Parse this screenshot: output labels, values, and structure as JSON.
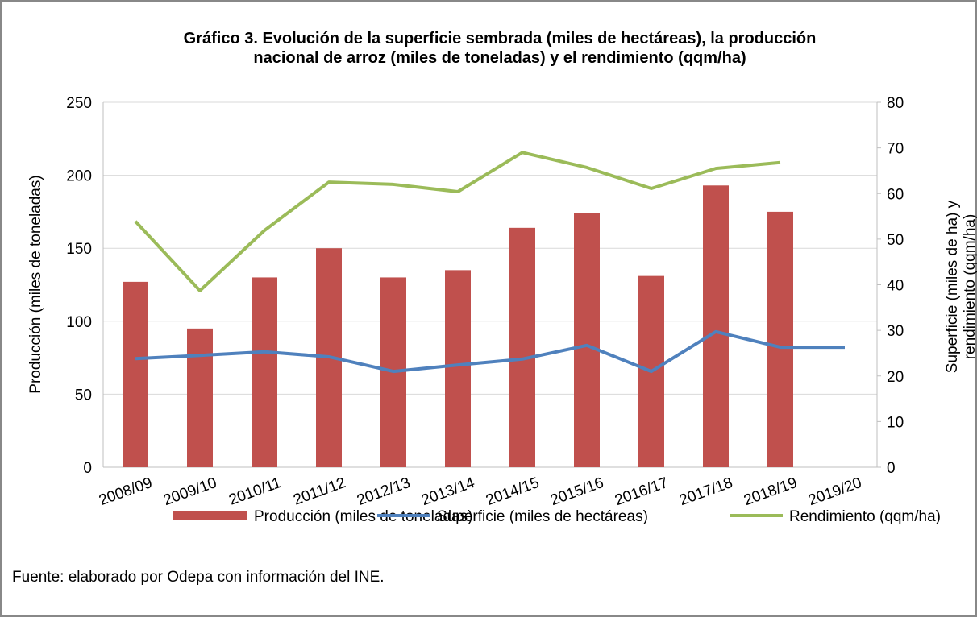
{
  "chart_data": {
    "type": "bar_line_combo",
    "title": "Gráfico 3. Evolución de la superficie sembrada (miles de hectáreas), la producción nacional de arroz (miles de toneladas) y el rendimiento (qqm/ha)",
    "y_label": "Producción (miles de toneladas)",
    "y2_label": "Superficie (miles de ha) y rendimiento (qqm/ha)",
    "source": "Fuente: elaborado por Odepa con información del INE.",
    "categories": [
      "2008/09",
      "2009/10",
      "2010/11",
      "2011/12",
      "2012/13",
      "2013/14",
      "2014/15",
      "2015/16",
      "2016/17",
      "2017/18",
      "2018/19",
      "2019/20"
    ],
    "series": [
      {
        "name": "Producción (miles de toneladas)",
        "type": "bar",
        "color": "#c0504d",
        "values": [
          127,
          95,
          130,
          150,
          130,
          135,
          164,
          174,
          131,
          193,
          175,
          null
        ]
      },
      {
        "name": "Superficie (miles de hectáreas)",
        "type": "line",
        "axis": "y2",
        "color": "#4f81bd",
        "values": [
          23.8,
          24.5,
          25.3,
          24.2,
          21,
          22.4,
          23.7,
          26.7,
          21,
          29.7,
          26.3,
          26.3
        ]
      },
      {
        "name": "Rendimiento (qqm/ha)",
        "type": "line",
        "axis": "y2",
        "color": "#9bbb59",
        "values": [
          53.9,
          38.7,
          51.9,
          62.5,
          62,
          60.4,
          69,
          65.7,
          61.1,
          65.5,
          66.8,
          null
        ]
      }
    ],
    "ylim": [
      0,
      250
    ],
    "yticks": [
      0,
      50,
      100,
      150,
      200,
      250
    ],
    "y2lim": [
      0,
      80
    ],
    "y2ticks": [
      0,
      10,
      20,
      30,
      40,
      50,
      60,
      70,
      80
    ],
    "grid": true,
    "legend": "bottom"
  }
}
